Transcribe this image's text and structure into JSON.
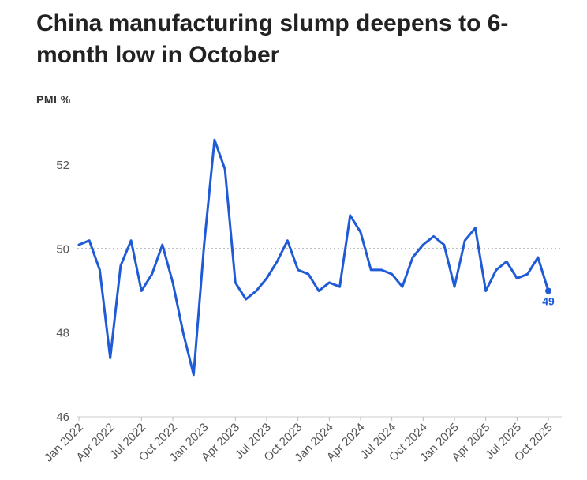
{
  "chart_data": {
    "type": "line",
    "title": "China manufacturing slump deepens to 6-month low in October",
    "ylabel": "PMI %",
    "xlabel": "",
    "ylim": [
      46,
      53
    ],
    "yticks": [
      46,
      48,
      50,
      52
    ],
    "reference_line": 50,
    "grid": false,
    "x_tick_labels": [
      "Jan 2022",
      "Apr 2022",
      "Jul 2022",
      "Oct 2022",
      "Jan 2023",
      "Apr 2023",
      "Jul 2023",
      "Oct 2023",
      "Jan 2024",
      "Apr 2024",
      "Jul 2024",
      "Oct 2024",
      "Jan 2025",
      "Apr 2025",
      "Jul 2025",
      "Oct 2025"
    ],
    "x": [
      "Jan 2022",
      "Feb 2022",
      "Mar 2022",
      "Apr 2022",
      "May 2022",
      "Jun 2022",
      "Jul 2022",
      "Aug 2022",
      "Sep 2022",
      "Oct 2022",
      "Nov 2022",
      "Dec 2022",
      "Jan 2023",
      "Feb 2023",
      "Mar 2023",
      "Apr 2023",
      "May 2023",
      "Jun 2023",
      "Jul 2023",
      "Aug 2023",
      "Sep 2023",
      "Oct 2023",
      "Nov 2023",
      "Dec 2023",
      "Jan 2024",
      "Feb 2024",
      "Mar 2024",
      "Apr 2024",
      "May 2024",
      "Jun 2024",
      "Jul 2024",
      "Aug 2024",
      "Sep 2024",
      "Oct 2024",
      "Nov 2024",
      "Dec 2024",
      "Jan 2025",
      "Feb 2025",
      "Mar 2025",
      "Apr 2025",
      "May 2025",
      "Jun 2025",
      "Jul 2025",
      "Aug 2025",
      "Sep 2025",
      "Oct 2025"
    ],
    "series": [
      {
        "name": "PMI",
        "color": "#1f5bd6",
        "values": [
          50.1,
          50.2,
          49.5,
          47.4,
          49.6,
          50.2,
          49.0,
          49.4,
          50.1,
          49.2,
          48.0,
          47.0,
          50.1,
          52.6,
          51.9,
          49.2,
          48.8,
          49.0,
          49.3,
          49.7,
          50.2,
          49.5,
          49.4,
          49.0,
          49.2,
          49.1,
          50.8,
          50.4,
          49.5,
          49.5,
          49.4,
          49.1,
          49.8,
          50.1,
          50.3,
          50.1,
          49.1,
          50.2,
          50.5,
          49.0,
          49.5,
          49.7,
          49.3,
          49.4,
          49.8,
          49.0
        ]
      }
    ],
    "end_label": "49"
  }
}
